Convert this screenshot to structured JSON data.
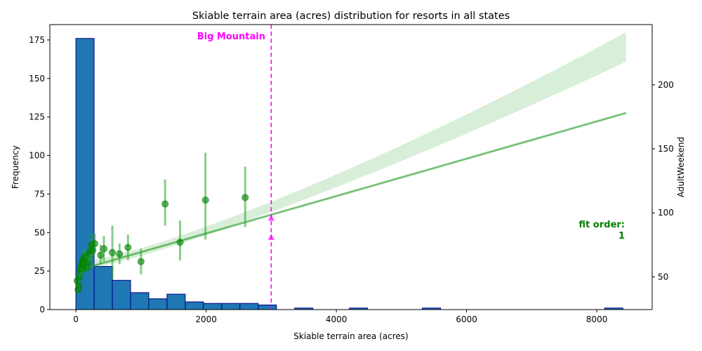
{
  "chart_data": {
    "type": "bar",
    "title": "Skiable terrain area (acres) distribution for resorts in all states",
    "xlabel": "Skiable terrain area (acres)",
    "ylabel": "Frequency",
    "y2label": "AdultWeekend",
    "xlim": [
      -400,
      8850
    ],
    "ylim": [
      0,
      185
    ],
    "y2lim": [
      24.5,
      247
    ],
    "x_ticks": [
      0,
      2000,
      4000,
      6000,
      8000
    ],
    "y_ticks": [
      0,
      25,
      50,
      75,
      100,
      125,
      150,
      175
    ],
    "y2_ticks": [
      50,
      100,
      150,
      200
    ],
    "grid": false,
    "histogram": {
      "bin_width": 280,
      "bin_starts": [
        0,
        280,
        560,
        840,
        1120,
        1400,
        1680,
        1960,
        2240,
        2520,
        2800,
        3080,
        3360,
        3640,
        3920,
        4200,
        4480,
        4760,
        5040,
        5320,
        5600,
        5880,
        6160,
        6440,
        6720,
        7000,
        7280,
        7560,
        7840,
        8120
      ],
      "values": [
        176,
        28,
        19,
        11,
        7,
        10,
        5,
        4,
        4,
        4,
        3,
        0,
        1,
        0,
        0,
        1,
        0,
        0,
        0,
        1,
        0,
        0,
        0,
        0,
        0,
        0,
        0,
        0,
        0,
        1
      ],
      "color": "#1f77b4",
      "edge_color": "#000080"
    },
    "regression": {
      "order": 1,
      "x_range": [
        15,
        8450
      ],
      "y_start": 55,
      "y_end": 178,
      "ci_lower_end": 135,
      "ci_upper_end": 238,
      "color": "#2ca02c",
      "points": [
        {
          "x": 20,
          "y": 47,
          "lo": 42,
          "hi": 52
        },
        {
          "x": 35,
          "y": 40,
          "lo": 37,
          "hi": 44
        },
        {
          "x": 45,
          "y": 43,
          "lo": 40,
          "hi": 46
        },
        {
          "x": 55,
          "y": 50,
          "lo": 46,
          "hi": 54
        },
        {
          "x": 65,
          "y": 55,
          "lo": 50,
          "hi": 59
        },
        {
          "x": 75,
          "y": 58,
          "lo": 53,
          "hi": 63
        },
        {
          "x": 85,
          "y": 56,
          "lo": 52,
          "hi": 60
        },
        {
          "x": 95,
          "y": 62,
          "lo": 57,
          "hi": 67
        },
        {
          "x": 105,
          "y": 60,
          "lo": 55,
          "hi": 65
        },
        {
          "x": 115,
          "y": 64,
          "lo": 58,
          "hi": 70
        },
        {
          "x": 125,
          "y": 59,
          "lo": 54,
          "hi": 64
        },
        {
          "x": 135,
          "y": 66,
          "lo": 60,
          "hi": 72
        },
        {
          "x": 150,
          "y": 63,
          "lo": 57,
          "hi": 69
        },
        {
          "x": 165,
          "y": 57,
          "lo": 52,
          "hi": 62
        },
        {
          "x": 180,
          "y": 61,
          "lo": 55,
          "hi": 67
        },
        {
          "x": 200,
          "y": 68,
          "lo": 61,
          "hi": 75
        },
        {
          "x": 220,
          "y": 70,
          "lo": 63,
          "hi": 77
        },
        {
          "x": 240,
          "y": 75,
          "lo": 66,
          "hi": 84
        },
        {
          "x": 260,
          "y": 71,
          "lo": 64,
          "hi": 79
        },
        {
          "x": 290,
          "y": 76,
          "lo": 68,
          "hi": 84
        },
        {
          "x": 380,
          "y": 67,
          "lo": 60,
          "hi": 75
        },
        {
          "x": 430,
          "y": 72,
          "lo": 62,
          "hi": 82
        },
        {
          "x": 560,
          "y": 69,
          "lo": 48,
          "hi": 90
        },
        {
          "x": 670,
          "y": 68,
          "lo": 60,
          "hi": 76
        },
        {
          "x": 800,
          "y": 73,
          "lo": 63,
          "hi": 83
        },
        {
          "x": 1000,
          "y": 62,
          "lo": 52,
          "hi": 72
        },
        {
          "x": 1370,
          "y": 107,
          "lo": 90,
          "hi": 126
        },
        {
          "x": 1600,
          "y": 77,
          "lo": 63,
          "hi": 94
        },
        {
          "x": 1990,
          "y": 110,
          "lo": 79,
          "hi": 147
        },
        {
          "x": 2600,
          "y": 112,
          "lo": 89,
          "hi": 136
        }
      ]
    },
    "marker": {
      "label": "Big Mountain",
      "x": 3000,
      "y_values": [
        81,
        96
      ],
      "color": "#ff00ff"
    },
    "annotation": {
      "line1": "fit order:",
      "line2": "1",
      "color": "#008000"
    }
  }
}
